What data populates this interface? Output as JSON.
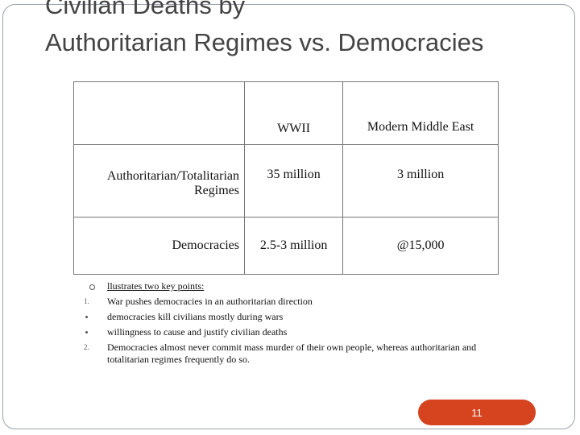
{
  "title": {
    "line1": "Civilian Deaths by",
    "line2": "Authoritarian Regimes vs. Democracies"
  },
  "table": {
    "columns": [
      "WWII",
      "Modern Middle East"
    ],
    "rows": [
      {
        "label": "Authoritarian/Totalitarian Regimes",
        "values": [
          "35 million",
          "3 million"
        ]
      },
      {
        "label": "Democracies",
        "values": [
          "2.5-3 million",
          "@15,000"
        ]
      }
    ]
  },
  "bullets": [
    {
      "marker": "",
      "text": "llustrates two key points:"
    },
    {
      "marker": "1.",
      "text": "War pushes democracies in an authoritarian direction"
    },
    {
      "marker": "",
      "text": "democracies kill civilians mostly during wars"
    },
    {
      "marker": "",
      "text": "willingness to cause and justify civilian deaths"
    },
    {
      "marker": "2.",
      "text": "Democracies almost never commit mass murder of their own people, whereas authoritarian and totalitarian regimes frequently do so."
    }
  ],
  "page_number": "11",
  "colors": {
    "badge": "#d5431f",
    "title": "#444444"
  }
}
